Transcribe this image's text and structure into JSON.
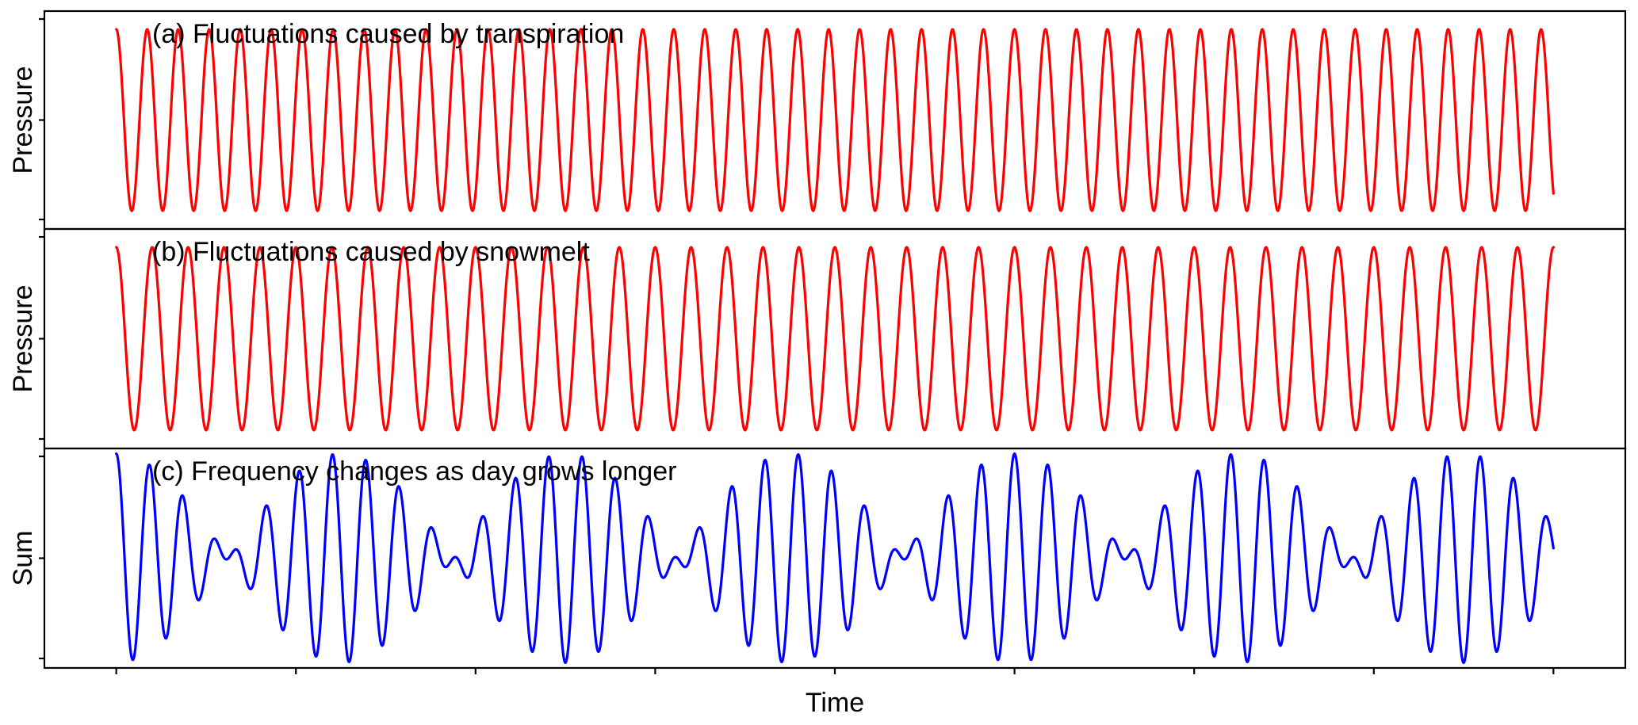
{
  "chart_data": [
    {
      "type": "line",
      "title": "(a) Fluctuations caused by transpiration",
      "ylabel": "Pressure",
      "xlabel": "",
      "x_ticks_visible": false,
      "y_ticks_visible": false,
      "grid": false,
      "xlim": [
        -0.04,
        0.84
      ],
      "ylim": [
        -1.2,
        1.2
      ],
      "series": [
        {
          "color": "#ff0000",
          "kind": "sinusoid",
          "amplitude": 1.0,
          "cycles_per_unit": 58.0,
          "phase": 0.0,
          "offset": 0.0,
          "x_start": 0.0,
          "x_end": 0.8
        }
      ]
    },
    {
      "type": "line",
      "title": "(b) Fluctuations caused by snowmelt",
      "ylabel": "Pressure",
      "xlabel": "",
      "x_ticks_visible": false,
      "y_ticks_visible": false,
      "grid": false,
      "xlim": [
        -0.04,
        0.84
      ],
      "ylim": [
        -1.2,
        1.2
      ],
      "series": [
        {
          "color": "#ff0000",
          "kind": "sinusoid",
          "amplitude": 1.0,
          "cycles_per_unit": 50.0,
          "phase": 0.0,
          "offset": 0.0,
          "x_start": 0.0,
          "x_end": 0.8
        }
      ]
    },
    {
      "type": "line",
      "title": "(c) Frequency changes as day grows longer",
      "ylabel": "Sum",
      "xlabel": "Time",
      "x_ticks_visible": false,
      "y_ticks_visible": false,
      "grid": false,
      "xlim": [
        -0.04,
        0.84
      ],
      "ylim": [
        -2.1,
        2.1
      ],
      "series": [
        {
          "color": "#0000ff",
          "kind": "sum_of_sinusoids",
          "components": [
            {
              "amplitude": 1.0,
              "cycles_per_unit": 58.0,
              "phase": 0.0
            },
            {
              "amplitude": 1.0,
              "cycles_per_unit": 50.0,
              "phase": 0.0
            }
          ],
          "offset": 0.0,
          "x_start": 0.0,
          "x_end": 0.8
        }
      ]
    }
  ]
}
